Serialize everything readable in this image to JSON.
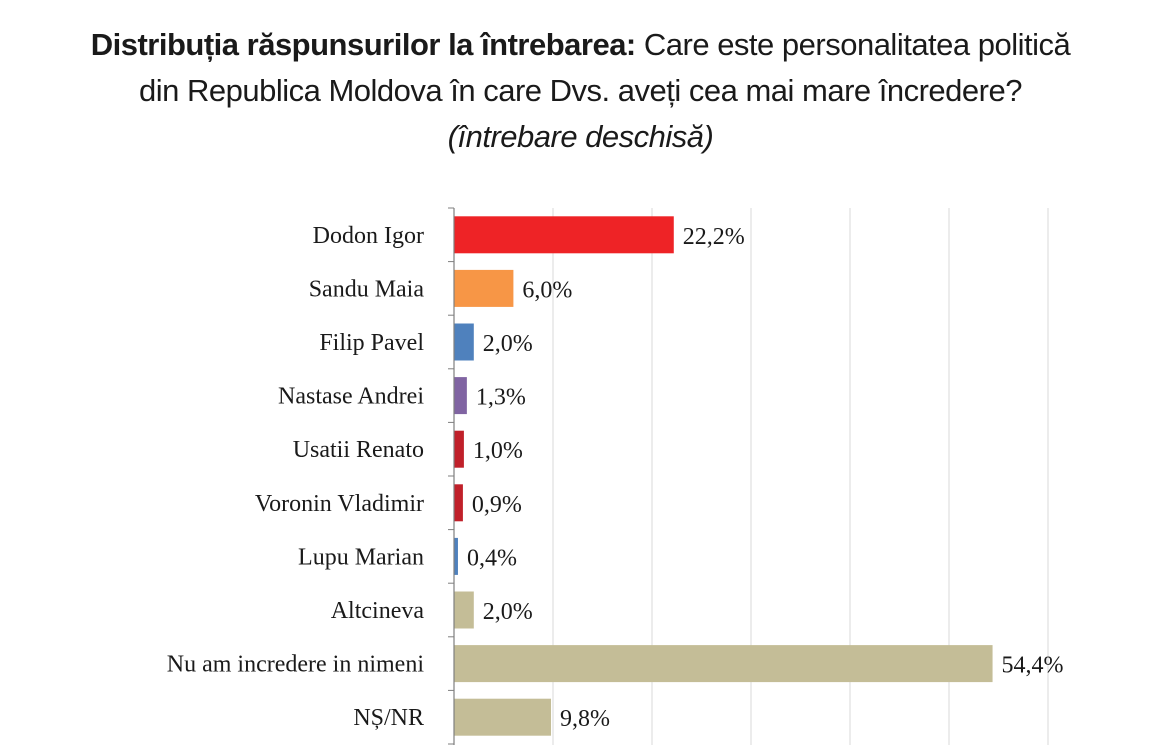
{
  "header": {
    "title_bold": "Distribuția răspunsurilor la întrebarea:",
    "title_rest": "Care este personalitatea politică",
    "title_line2": "din Republica Moldova în care Dvs. aveți cea mai mare încredere?",
    "subtitle": "(întrebare deschisă)"
  },
  "chart_data": {
    "type": "bar",
    "orientation": "horizontal",
    "title": "Distribuția răspunsurilor la întrebarea: Care este personalitatea politică din Republica Moldova în care Dvs. aveți cea mai mare încredere?",
    "subtitle": "(întrebare deschisă)",
    "categories": [
      "Dodon Igor",
      "Sandu Maia",
      "Filip Pavel",
      "Nastase Andrei",
      "Usatii Renato",
      "Voronin Vladimir",
      "Lupu Marian",
      "Altcineva",
      "Nu am incredere in nimeni",
      "NȘ/NR"
    ],
    "values": [
      22.2,
      6.0,
      2.0,
      1.3,
      1.0,
      0.9,
      0.4,
      2.0,
      54.4,
      9.8
    ],
    "value_labels": [
      "22,2%",
      "6,0%",
      "2,0%",
      "1,3%",
      "1,0%",
      "0,9%",
      "0,4%",
      "2,0%",
      "54,4%",
      "9,8%"
    ],
    "colors": [
      "#ee2326",
      "#f79646",
      "#4f81bd",
      "#8064a2",
      "#c0202a",
      "#c0202a",
      "#4f81bd",
      "#c4bd97",
      "#c4bd97",
      "#c4bd97"
    ],
    "xlabel": "",
    "ylabel": "",
    "xlim": [
      0,
      60
    ],
    "grid": true,
    "legend": "none"
  }
}
